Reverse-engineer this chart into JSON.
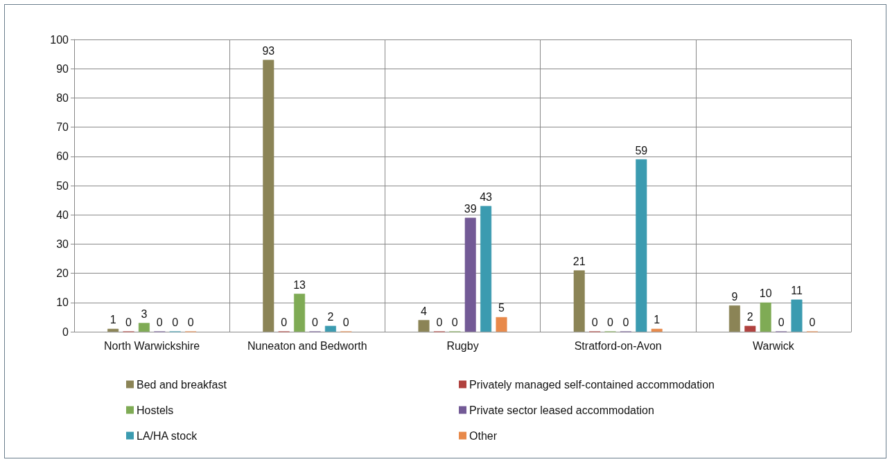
{
  "chart_data": {
    "type": "bar",
    "categories": [
      "North Warwickshire",
      "Nuneaton and Bedworth",
      "Rugby",
      "Stratford-on-Avon",
      "Warwick"
    ],
    "series": [
      {
        "name": "Bed and breakfast",
        "color": "#8b8456",
        "values": [
          1,
          93,
          4,
          21,
          9
        ]
      },
      {
        "name": "Privately managed self-contained accommodation",
        "color": "#b0413e",
        "values": [
          0,
          0,
          0,
          0,
          2
        ]
      },
      {
        "name": "Hostels",
        "color": "#7fab55",
        "values": [
          3,
          13,
          0,
          0,
          10
        ]
      },
      {
        "name": "Private sector leased accommodation",
        "color": "#735a96",
        "values": [
          0,
          0,
          39,
          0,
          0
        ]
      },
      {
        "name": "LA/HA stock",
        "color": "#3b9bb0",
        "values": [
          0,
          2,
          43,
          59,
          11
        ]
      },
      {
        "name": "Other",
        "color": "#e8894a",
        "values": [
          0,
          0,
          5,
          1,
          0
        ]
      }
    ],
    "ylim": [
      0,
      100
    ],
    "yticks": [
      0,
      10,
      20,
      30,
      40,
      50,
      60,
      70,
      80,
      90,
      100
    ],
    "grid": true,
    "legend": "bottom",
    "data_labels": true
  }
}
